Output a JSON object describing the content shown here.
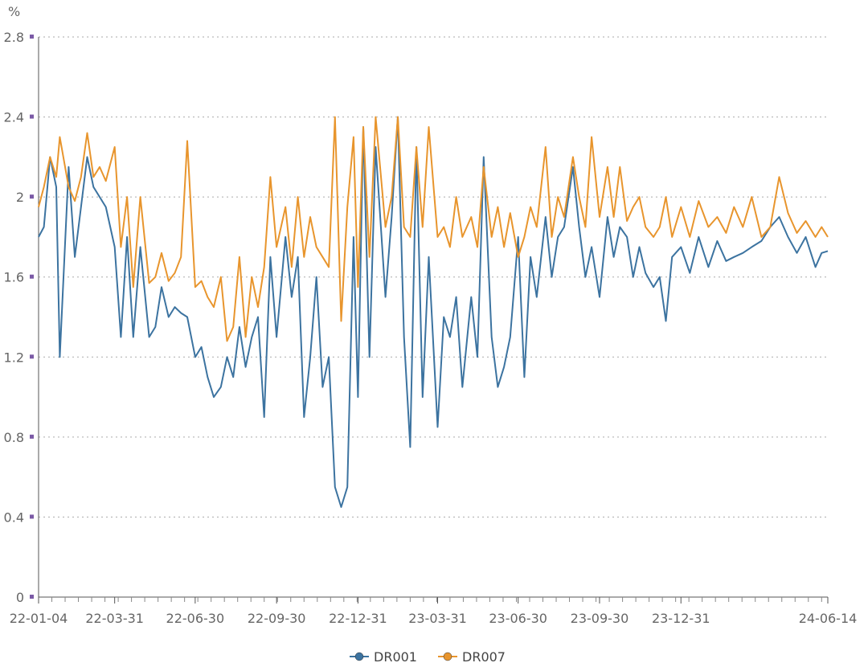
{
  "chart_data": {
    "type": "line",
    "unit_label": "%",
    "ylim": [
      0,
      2.8
    ],
    "yticks": [
      "0",
      "0.4",
      "0.8",
      "1.2",
      "1.6",
      "2",
      "2.4",
      "2.8"
    ],
    "xticks": [
      {
        "label": "22-01-04",
        "date": "2022-01-04"
      },
      {
        "label": "22-03-31",
        "date": "2022-03-31"
      },
      {
        "label": "22-06-30",
        "date": "2022-06-30"
      },
      {
        "label": "22-09-30",
        "date": "2022-09-30"
      },
      {
        "label": "22-12-31",
        "date": "2022-12-31"
      },
      {
        "label": "23-03-31",
        "date": "2023-03-31"
      },
      {
        "label": "23-06-30",
        "date": "2023-06-30"
      },
      {
        "label": "23-09-30",
        "date": "2023-09-30"
      },
      {
        "label": "23-12-31",
        "date": "2023-12-31"
      },
      {
        "label": "24-06-14",
        "date": "2024-06-14"
      }
    ],
    "grid": {
      "horizontal": true,
      "style": "dotted"
    },
    "legend_position": "bottom-center",
    "x": [
      "2022-01-04",
      "2022-01-10",
      "2022-01-17",
      "2022-01-24",
      "2022-01-28",
      "2022-02-07",
      "2022-02-14",
      "2022-02-21",
      "2022-02-28",
      "2022-03-07",
      "2022-03-14",
      "2022-03-21",
      "2022-03-31",
      "2022-04-07",
      "2022-04-14",
      "2022-04-21",
      "2022-04-29",
      "2022-05-09",
      "2022-05-16",
      "2022-05-23",
      "2022-05-31",
      "2022-06-07",
      "2022-06-14",
      "2022-06-21",
      "2022-06-30",
      "2022-07-07",
      "2022-07-14",
      "2022-07-21",
      "2022-07-29",
      "2022-08-05",
      "2022-08-12",
      "2022-08-19",
      "2022-08-26",
      "2022-09-02",
      "2022-09-09",
      "2022-09-16",
      "2022-09-23",
      "2022-09-30",
      "2022-10-10",
      "2022-10-17",
      "2022-10-24",
      "2022-10-31",
      "2022-11-07",
      "2022-11-14",
      "2022-11-21",
      "2022-11-28",
      "2022-12-05",
      "2022-12-12",
      "2022-12-19",
      "2022-12-26",
      "2022-12-31",
      "2023-01-06",
      "2023-01-13",
      "2023-01-20",
      "2023-01-31",
      "2023-02-07",
      "2023-02-14",
      "2023-02-21",
      "2023-02-28",
      "2023-03-07",
      "2023-03-14",
      "2023-03-21",
      "2023-03-31",
      "2023-04-07",
      "2023-04-14",
      "2023-04-21",
      "2023-04-28",
      "2023-05-08",
      "2023-05-15",
      "2023-05-22",
      "2023-05-31",
      "2023-06-07",
      "2023-06-14",
      "2023-06-21",
      "2023-06-30",
      "2023-07-07",
      "2023-07-14",
      "2023-07-21",
      "2023-07-31",
      "2023-08-07",
      "2023-08-14",
      "2023-08-21",
      "2023-08-31",
      "2023-09-07",
      "2023-09-14",
      "2023-09-21",
      "2023-09-30",
      "2023-10-09",
      "2023-10-16",
      "2023-10-23",
      "2023-10-31",
      "2023-11-07",
      "2023-11-14",
      "2023-11-21",
      "2023-11-30",
      "2023-12-07",
      "2023-12-14",
      "2023-12-21",
      "2023-12-31",
      "2024-01-10",
      "2024-01-20",
      "2024-01-31",
      "2024-02-10",
      "2024-02-20",
      "2024-02-29",
      "2024-03-10",
      "2024-03-20",
      "2024-03-31",
      "2024-04-10",
      "2024-04-20",
      "2024-04-30",
      "2024-05-10",
      "2024-05-20",
      "2024-05-31",
      "2024-06-07",
      "2024-06-14"
    ],
    "series": [
      {
        "name": "DR001",
        "color": "#3c73a0",
        "values": [
          1.8,
          1.85,
          2.2,
          2.05,
          1.2,
          2.15,
          1.7,
          1.95,
          2.2,
          2.05,
          2.0,
          1.95,
          1.75,
          1.3,
          1.8,
          1.3,
          1.75,
          1.3,
          1.35,
          1.55,
          1.4,
          1.45,
          1.42,
          1.4,
          1.2,
          1.25,
          1.1,
          1.0,
          1.05,
          1.2,
          1.1,
          1.35,
          1.15,
          1.3,
          1.4,
          0.9,
          1.7,
          1.3,
          1.8,
          1.5,
          1.7,
          0.9,
          1.2,
          1.6,
          1.05,
          1.2,
          0.55,
          0.45,
          0.55,
          1.8,
          1.0,
          2.35,
          1.2,
          2.25,
          1.5,
          1.9,
          2.4,
          1.3,
          0.75,
          2.25,
          1.0,
          1.7,
          0.85,
          1.4,
          1.3,
          1.5,
          1.05,
          1.5,
          1.2,
          2.2,
          1.3,
          1.05,
          1.15,
          1.3,
          1.8,
          1.1,
          1.7,
          1.5,
          1.9,
          1.6,
          1.8,
          1.85,
          2.15,
          1.85,
          1.6,
          1.75,
          1.5,
          1.9,
          1.7,
          1.85,
          1.8,
          1.6,
          1.75,
          1.62,
          1.55,
          1.6,
          1.38,
          1.7,
          1.75,
          1.62,
          1.8,
          1.65,
          1.78,
          1.68,
          1.7,
          1.72,
          1.75,
          1.78,
          1.85,
          1.9,
          1.8,
          1.72,
          1.8,
          1.65,
          1.72,
          1.73
        ]
      },
      {
        "name": "DR007",
        "color": "#e8952d",
        "values": [
          1.95,
          2.05,
          2.2,
          2.1,
          2.3,
          2.05,
          1.98,
          2.1,
          2.32,
          2.1,
          2.15,
          2.08,
          2.25,
          1.75,
          2.0,
          1.55,
          2.0,
          1.57,
          1.6,
          1.72,
          1.58,
          1.62,
          1.7,
          2.28,
          1.55,
          1.58,
          1.5,
          1.45,
          1.6,
          1.28,
          1.35,
          1.7,
          1.3,
          1.6,
          1.45,
          1.65,
          2.1,
          1.75,
          1.95,
          1.65,
          2.0,
          1.7,
          1.9,
          1.75,
          1.7,
          1.65,
          2.4,
          1.38,
          1.95,
          2.3,
          1.55,
          2.35,
          1.7,
          2.4,
          1.85,
          2.0,
          2.4,
          1.85,
          1.8,
          2.25,
          1.85,
          2.35,
          1.8,
          1.85,
          1.75,
          2.0,
          1.8,
          1.9,
          1.75,
          2.15,
          1.8,
          1.95,
          1.75,
          1.92,
          1.7,
          1.8,
          1.95,
          1.85,
          2.25,
          1.8,
          2.0,
          1.9,
          2.2,
          2.0,
          1.85,
          2.3,
          1.9,
          2.15,
          1.9,
          2.15,
          1.88,
          1.95,
          2.0,
          1.85,
          1.8,
          1.85,
          2.0,
          1.8,
          1.95,
          1.8,
          1.98,
          1.85,
          1.9,
          1.82,
          1.95,
          1.85,
          2.0,
          1.8,
          1.85,
          2.1,
          1.92,
          1.82,
          1.88,
          1.8,
          1.85,
          1.8
        ]
      }
    ]
  }
}
